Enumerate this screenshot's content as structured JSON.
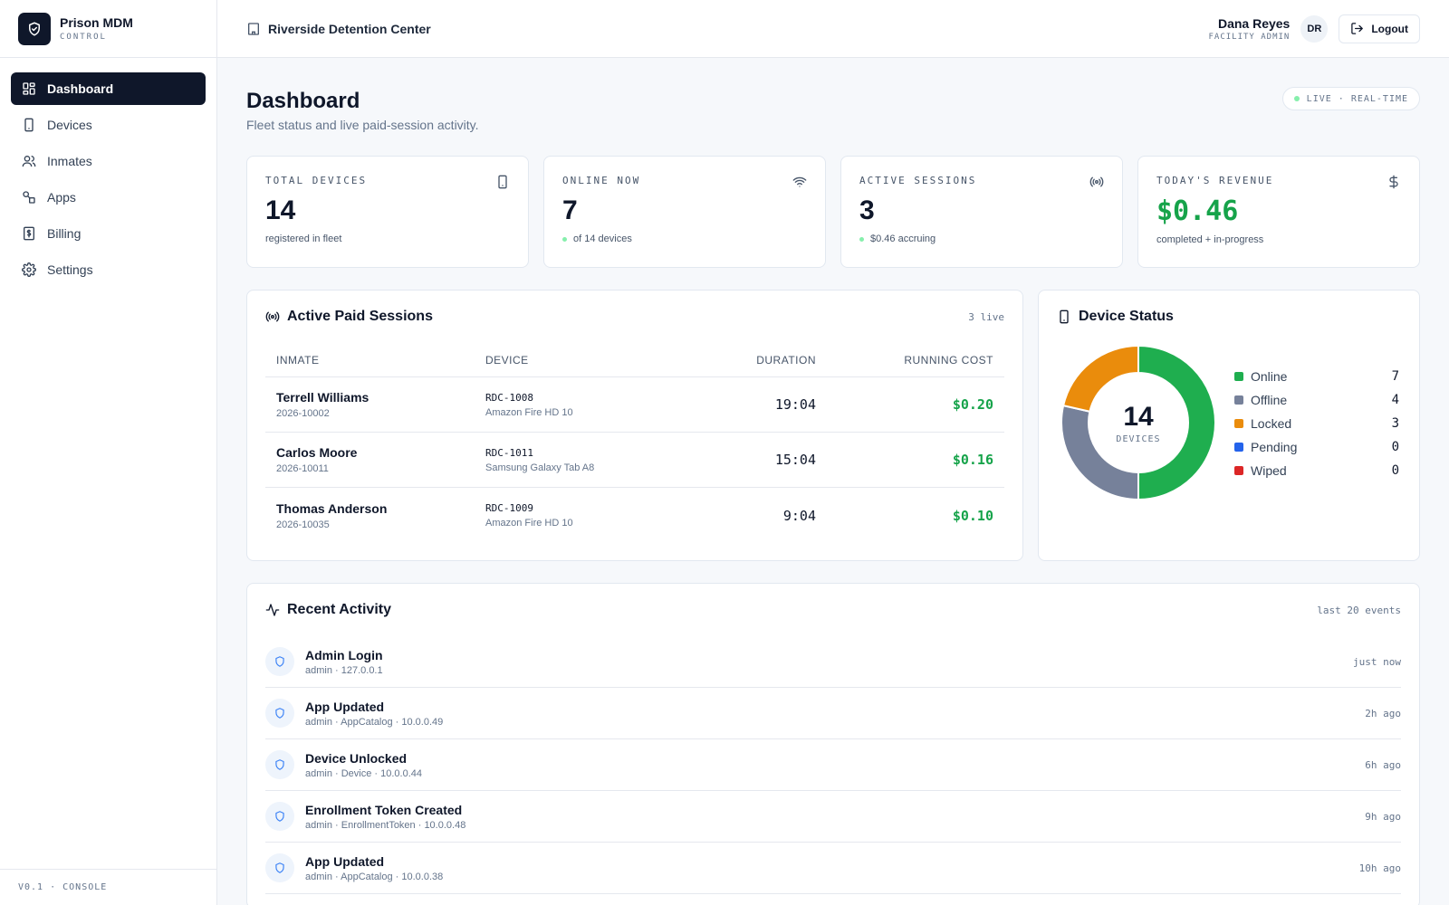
{
  "brand": {
    "name": "Prison MDM",
    "subtitle": "CONTROL"
  },
  "nav": [
    {
      "label": "Dashboard",
      "icon": "dashboard-icon",
      "active": true
    },
    {
      "label": "Devices",
      "icon": "tablet-icon",
      "active": false
    },
    {
      "label": "Inmates",
      "icon": "users-icon",
      "active": false
    },
    {
      "label": "Apps",
      "icon": "apps-icon",
      "active": false
    },
    {
      "label": "Billing",
      "icon": "receipt-icon",
      "active": false
    },
    {
      "label": "Settings",
      "icon": "gear-icon",
      "active": false
    }
  ],
  "version": "V0.1 · CONSOLE",
  "topbar": {
    "facility": "Riverside Detention Center",
    "user_name": "Dana Reyes",
    "user_role": "FACILITY ADMIN",
    "avatar": "DR",
    "logout_label": "Logout"
  },
  "page": {
    "title": "Dashboard",
    "subtitle": "Fleet status and live paid-session activity.",
    "live_badge": "LIVE · REAL-TIME"
  },
  "stats": [
    {
      "label": "TOTAL DEVICES",
      "value": "14",
      "sub": "registered in fleet",
      "icon": "tablet-icon",
      "dot": false,
      "green": false
    },
    {
      "label": "ONLINE NOW",
      "value": "7",
      "sub": "of 14 devices",
      "icon": "wifi-icon",
      "dot": true,
      "green": false
    },
    {
      "label": "ACTIVE SESSIONS",
      "value": "3",
      "sub": "$0.46 accruing",
      "icon": "broadcast-icon",
      "dot": true,
      "green": false
    },
    {
      "label": "TODAY'S REVENUE",
      "value": "$0.46",
      "sub": "completed + in-progress",
      "icon": "dollar-icon",
      "dot": false,
      "green": true
    }
  ],
  "sessions": {
    "title": "Active Paid Sessions",
    "meta": "3 live",
    "columns": [
      "INMATE",
      "DEVICE",
      "DURATION",
      "RUNNING COST"
    ],
    "rows": [
      {
        "inmate": "Terrell Williams",
        "inmate_id": "2026-10002",
        "device_id": "RDC-1008",
        "device_model": "Amazon Fire HD 10",
        "duration": "19:04",
        "cost": "$0.20"
      },
      {
        "inmate": "Carlos Moore",
        "inmate_id": "2026-10011",
        "device_id": "RDC-1011",
        "device_model": "Samsung Galaxy Tab A8",
        "duration": "15:04",
        "cost": "$0.16"
      },
      {
        "inmate": "Thomas Anderson",
        "inmate_id": "2026-10035",
        "device_id": "RDC-1009",
        "device_model": "Amazon Fire HD 10",
        "duration": "9:04",
        "cost": "$0.10"
      }
    ]
  },
  "device_status": {
    "title": "Device Status",
    "total": "14",
    "total_label": "DEVICES",
    "items": [
      {
        "label": "Online",
        "value": 7,
        "color": "#1fae4f"
      },
      {
        "label": "Offline",
        "value": 4,
        "color": "#76819a"
      },
      {
        "label": "Locked",
        "value": 3,
        "color": "#ea8c0c"
      },
      {
        "label": "Pending",
        "value": 0,
        "color": "#2463eb"
      },
      {
        "label": "Wiped",
        "value": 0,
        "color": "#dc2626"
      }
    ]
  },
  "activity": {
    "title": "Recent Activity",
    "meta": "last 20 events",
    "items": [
      {
        "title": "Admin Login",
        "sub": "admin · 127.0.0.1",
        "time": "just now"
      },
      {
        "title": "App Updated",
        "sub": "admin · AppCatalog · 10.0.0.49",
        "time": "2h ago"
      },
      {
        "title": "Device Unlocked",
        "sub": "admin · Device · 10.0.0.44",
        "time": "6h ago"
      },
      {
        "title": "Enrollment Token Created",
        "sub": "admin · EnrollmentToken · 10.0.0.48",
        "time": "9h ago"
      },
      {
        "title": "App Updated",
        "sub": "admin · AppCatalog · 10.0.0.38",
        "time": "10h ago"
      }
    ]
  }
}
